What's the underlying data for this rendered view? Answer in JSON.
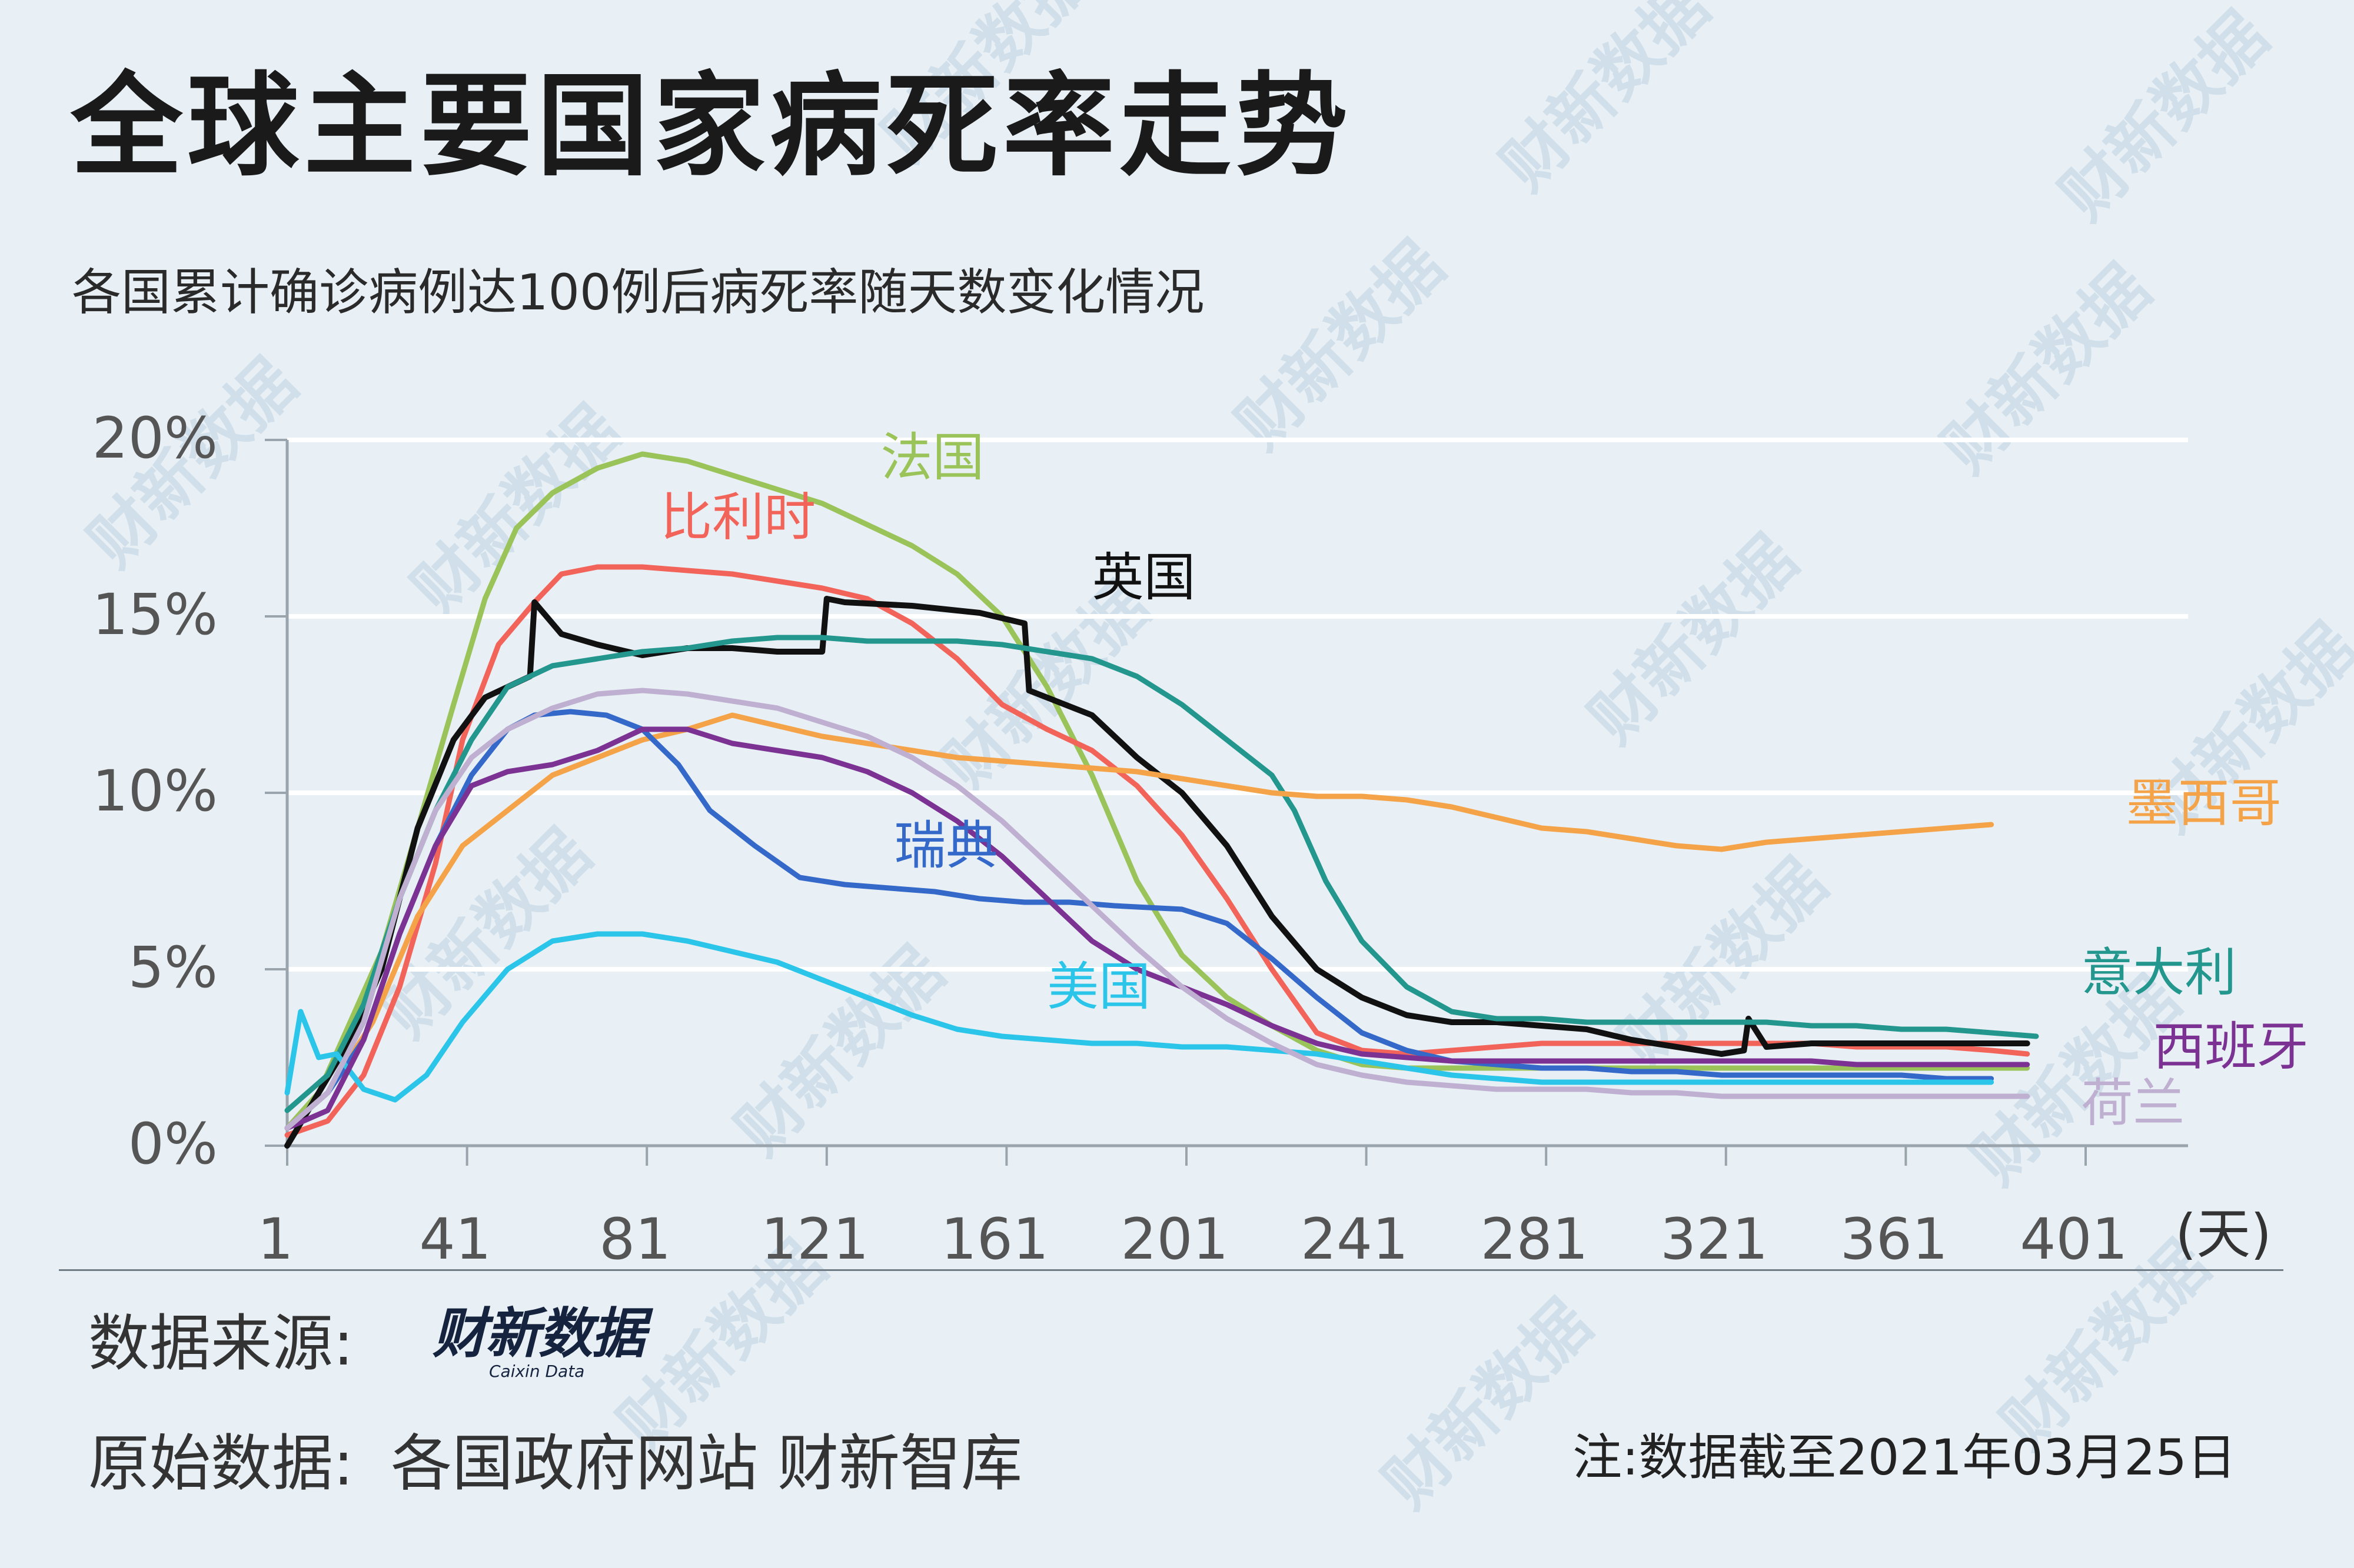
{
  "title": "全球主要国家病死率走势",
  "subtitle": "各国累计确诊病例达100例后病死率随天数变化情况",
  "watermark": "财新数据",
  "source": {
    "label": "数据来源:",
    "logo_cn": "财新数据",
    "logo_en": "Caixin Data",
    "raw_label": "原始数据:",
    "raw_value": "各国政府网站 财新智库"
  },
  "note": "注:数据截至2021年03月25日",
  "chart_data": {
    "type": "line",
    "xlabel": "(天)",
    "ylabel": "",
    "xlim": [
      1,
      426
    ],
    "ylim": [
      0,
      20
    ],
    "x_ticks": [
      "1",
      "41",
      "81",
      "121",
      "161",
      "201",
      "241",
      "281",
      "321",
      "361",
      "401"
    ],
    "y_ticks": [
      "0%",
      "5%",
      "10%",
      "15%",
      "20%"
    ],
    "grid": "horizontal",
    "legend": "inline labels at line ends",
    "series": [
      {
        "name": "法国",
        "color": "#9ac35a",
        "x": [
          1,
          8,
          15,
          22,
          30,
          38,
          45,
          52,
          60,
          70,
          80,
          90,
          100,
          110,
          120,
          130,
          140,
          150,
          160,
          170,
          180,
          190,
          200,
          210,
          220,
          230,
          240,
          250,
          260,
          270,
          280,
          290,
          300,
          310,
          320,
          330,
          340,
          350,
          360,
          370,
          380,
          388
        ],
        "y": [
          0.5,
          1.5,
          3.5,
          5.5,
          9,
          12.5,
          15.5,
          17.5,
          18.5,
          19.2,
          19.6,
          19.4,
          19.0,
          18.6,
          18.2,
          17.6,
          17.0,
          16.2,
          15.0,
          13.0,
          10.5,
          7.5,
          5.4,
          4.2,
          3.4,
          2.7,
          2.3,
          2.2,
          2.2,
          2.2,
          2.2,
          2.2,
          2.2,
          2.2,
          2.2,
          2.2,
          2.2,
          2.2,
          2.2,
          2.2,
          2.2,
          2.2
        ]
      },
      {
        "name": "比利时",
        "color": "#f2635a",
        "x": [
          1,
          10,
          18,
          26,
          34,
          40,
          48,
          56,
          62,
          70,
          80,
          90,
          100,
          110,
          120,
          130,
          140,
          150,
          160,
          170,
          180,
          190,
          200,
          210,
          220,
          230,
          240,
          250,
          260,
          270,
          280,
          290,
          300,
          310,
          320,
          330,
          340,
          350,
          360,
          370,
          380,
          388
        ],
        "y": [
          0.3,
          0.7,
          2,
          4.5,
          8,
          11.5,
          14.2,
          15.4,
          16.2,
          16.4,
          16.4,
          16.3,
          16.2,
          16.0,
          15.8,
          15.5,
          14.8,
          13.8,
          12.5,
          11.8,
          11.2,
          10.2,
          8.8,
          7.0,
          5.0,
          3.2,
          2.7,
          2.6,
          2.7,
          2.8,
          2.9,
          2.9,
          2.9,
          2.9,
          2.9,
          2.9,
          2.9,
          2.8,
          2.8,
          2.8,
          2.7,
          2.6
        ]
      },
      {
        "name": "英国",
        "color": "#111111",
        "x": [
          1,
          8,
          15,
          22,
          30,
          38,
          45,
          50,
          55,
          56,
          62,
          70,
          80,
          90,
          100,
          110,
          120,
          121,
          125,
          140,
          155,
          165,
          166,
          180,
          190,
          200,
          210,
          220,
          230,
          240,
          250,
          260,
          270,
          280,
          290,
          300,
          310,
          320,
          325,
          326,
          330,
          340,
          350,
          360,
          370,
          380,
          388
        ],
        "y": [
          0,
          1.5,
          3,
          5,
          9,
          11.5,
          12.7,
          13.0,
          13.3,
          15.4,
          14.5,
          14.2,
          13.9,
          14.1,
          14.1,
          14.0,
          14.0,
          15.5,
          15.4,
          15.3,
          15.1,
          14.8,
          12.9,
          12.2,
          11.0,
          10.0,
          8.5,
          6.5,
          5.0,
          4.2,
          3.7,
          3.5,
          3.5,
          3.4,
          3.3,
          3.0,
          2.8,
          2.6,
          2.7,
          3.6,
          2.8,
          2.9,
          2.9,
          2.9,
          2.9,
          2.9,
          2.9
        ]
      },
      {
        "name": "意大利",
        "color": "#23978e",
        "x": [
          1,
          10,
          18,
          26,
          34,
          42,
          50,
          60,
          70,
          80,
          90,
          100,
          110,
          120,
          130,
          140,
          150,
          160,
          170,
          180,
          190,
          200,
          210,
          220,
          225,
          232,
          240,
          250,
          260,
          270,
          280,
          290,
          300,
          310,
          320,
          330,
          340,
          350,
          360,
          370,
          380,
          390
        ],
        "y": [
          1,
          2,
          4,
          7,
          9.5,
          11.5,
          13.0,
          13.6,
          13.8,
          14.0,
          14.1,
          14.3,
          14.4,
          14.4,
          14.3,
          14.3,
          14.3,
          14.2,
          14.0,
          13.8,
          13.3,
          12.5,
          11.5,
          10.5,
          9.5,
          7.5,
          5.8,
          4.5,
          3.8,
          3.6,
          3.6,
          3.5,
          3.5,
          3.5,
          3.5,
          3.5,
          3.4,
          3.4,
          3.3,
          3.3,
          3.2,
          3.1
        ]
      },
      {
        "name": "墨西哥",
        "color": "#f5a348",
        "x": [
          1,
          10,
          20,
          30,
          40,
          50,
          60,
          70,
          80,
          90,
          100,
          110,
          120,
          130,
          140,
          150,
          160,
          170,
          180,
          190,
          200,
          210,
          220,
          230,
          240,
          250,
          260,
          270,
          280,
          290,
          300,
          310,
          320,
          330,
          340,
          350,
          360,
          370,
          380
        ],
        "y": [
          0.5,
          1.5,
          3.5,
          6.5,
          8.5,
          9.5,
          10.5,
          11.0,
          11.5,
          11.8,
          12.2,
          11.9,
          11.6,
          11.4,
          11.2,
          11.0,
          10.9,
          10.8,
          10.7,
          10.6,
          10.4,
          10.2,
          10.0,
          9.9,
          9.9,
          9.8,
          9.6,
          9.3,
          9.0,
          8.9,
          8.7,
          8.5,
          8.4,
          8.6,
          8.7,
          8.8,
          8.9,
          9.0,
          9.1
        ]
      },
      {
        "name": "瑞典",
        "color": "#3468c9",
        "x": [
          1,
          10,
          18,
          26,
          34,
          42,
          50,
          56,
          64,
          72,
          80,
          88,
          95,
          105,
          115,
          125,
          135,
          145,
          155,
          165,
          175,
          185,
          200,
          210,
          220,
          230,
          240,
          250,
          260,
          270,
          280,
          290,
          300,
          310,
          320,
          330,
          340,
          350,
          360,
          370,
          380
        ],
        "y": [
          0.5,
          1.5,
          3,
          6,
          8.5,
          10.5,
          11.8,
          12.2,
          12.3,
          12.2,
          11.8,
          10.8,
          9.5,
          8.5,
          7.6,
          7.4,
          7.3,
          7.2,
          7.0,
          6.9,
          6.9,
          6.8,
          6.7,
          6.3,
          5.3,
          4.2,
          3.2,
          2.7,
          2.4,
          2.3,
          2.2,
          2.2,
          2.1,
          2.1,
          2.0,
          2.0,
          2.0,
          2.0,
          2.0,
          1.9,
          1.9
        ]
      },
      {
        "name": "美国",
        "color": "#2cc5ea",
        "x": [
          1,
          4,
          8,
          12,
          18,
          25,
          32,
          40,
          50,
          60,
          70,
          80,
          90,
          100,
          110,
          120,
          130,
          140,
          150,
          160,
          170,
          180,
          190,
          200,
          210,
          220,
          230,
          240,
          250,
          260,
          270,
          280,
          290,
          300,
          310,
          320,
          330,
          340,
          350,
          360,
          370,
          380
        ],
        "y": [
          1.5,
          3.8,
          2.5,
          2.6,
          1.6,
          1.3,
          2,
          3.5,
          5,
          5.8,
          6.0,
          6.0,
          5.8,
          5.5,
          5.2,
          4.7,
          4.2,
          3.7,
          3.3,
          3.1,
          3.0,
          2.9,
          2.9,
          2.8,
          2.8,
          2.7,
          2.6,
          2.4,
          2.2,
          2.0,
          1.9,
          1.8,
          1.8,
          1.8,
          1.8,
          1.8,
          1.8,
          1.8,
          1.8,
          1.8,
          1.8,
          1.8
        ]
      },
      {
        "name": "西班牙",
        "color": "#7b3293",
        "x": [
          1,
          10,
          18,
          26,
          34,
          42,
          50,
          60,
          70,
          80,
          90,
          100,
          110,
          120,
          130,
          140,
          150,
          160,
          170,
          180,
          190,
          200,
          210,
          220,
          230,
          240,
          250,
          260,
          270,
          280,
          290,
          300,
          310,
          320,
          330,
          340,
          350,
          360,
          370,
          380,
          388
        ],
        "y": [
          0.5,
          1,
          3,
          6,
          8.5,
          10.2,
          10.6,
          10.8,
          11.2,
          11.8,
          11.8,
          11.4,
          11.2,
          11.0,
          10.6,
          10.0,
          9.2,
          8.2,
          7.0,
          5.8,
          5.0,
          4.5,
          4.0,
          3.4,
          2.9,
          2.6,
          2.5,
          2.4,
          2.4,
          2.4,
          2.4,
          2.4,
          2.4,
          2.4,
          2.4,
          2.4,
          2.3,
          2.3,
          2.3,
          2.3,
          2.3
        ]
      },
      {
        "name": "荷兰",
        "color": "#bfafd1",
        "x": [
          1,
          10,
          18,
          26,
          34,
          42,
          50,
          60,
          70,
          80,
          90,
          100,
          110,
          120,
          130,
          140,
          150,
          160,
          170,
          180,
          190,
          200,
          210,
          220,
          230,
          240,
          250,
          260,
          270,
          280,
          290,
          300,
          310,
          320,
          330,
          340,
          350,
          360,
          370,
          380,
          388
        ],
        "y": [
          0.5,
          1.5,
          3.5,
          7,
          9.5,
          11.0,
          11.8,
          12.4,
          12.8,
          12.9,
          12.8,
          12.6,
          12.4,
          12.0,
          11.6,
          11.0,
          10.2,
          9.2,
          8.0,
          6.8,
          5.6,
          4.5,
          3.6,
          2.9,
          2.3,
          2.0,
          1.8,
          1.7,
          1.6,
          1.6,
          1.6,
          1.5,
          1.5,
          1.4,
          1.4,
          1.4,
          1.4,
          1.4,
          1.4,
          1.4,
          1.4
        ]
      }
    ],
    "labels": [
      {
        "text": "法国",
        "series": 0,
        "x": 133,
        "y": 19.0
      },
      {
        "text": "比利时",
        "series": 1,
        "x": 84,
        "y": 17.3
      },
      {
        "text": "英国",
        "series": 2,
        "x": 180,
        "y": 15.6
      },
      {
        "text": "墨西哥",
        "series": 4,
        "x": 410,
        "y": 9.2
      },
      {
        "text": "瑞典",
        "series": 5,
        "x": 136,
        "y": 8.0
      },
      {
        "text": "美国",
        "series": 6,
        "x": 170,
        "y": 4.0
      },
      {
        "text": "意大利",
        "series": 3,
        "x": 400,
        "y": 4.4
      },
      {
        "text": "西班牙",
        "series": 7,
        "x": 416,
        "y": 2.3
      },
      {
        "text": "荷兰",
        "series": 8,
        "x": 400,
        "y": 0.7
      }
    ]
  }
}
